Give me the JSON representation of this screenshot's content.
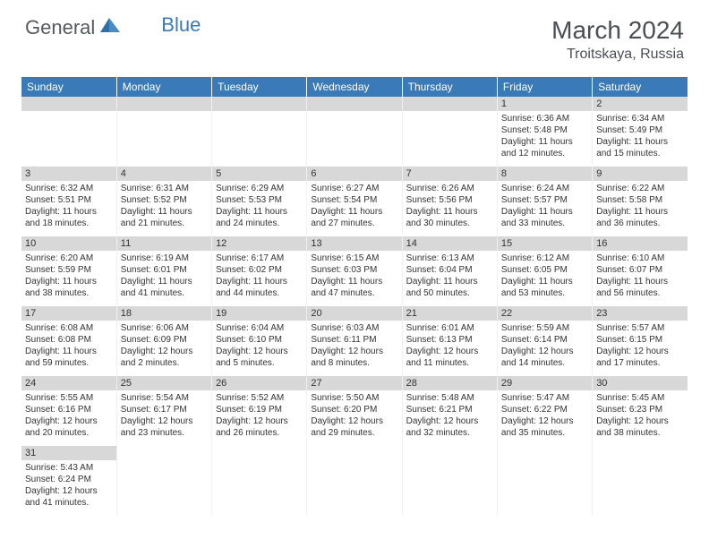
{
  "logo": {
    "general": "General",
    "blue": "Blue"
  },
  "title": "March 2024",
  "location": "Troitskaya, Russia",
  "weekdays": [
    "Sunday",
    "Monday",
    "Tuesday",
    "Wednesday",
    "Thursday",
    "Friday",
    "Saturday"
  ],
  "header_bg": "#3a7ab8",
  "header_fg": "#ffffff",
  "daybar_bg": "#d8d8d8",
  "first_weekday": 5,
  "days": [
    {
      "n": 1,
      "sr": "6:36 AM",
      "ss": "5:48 PM",
      "dl": "11 hours and 12 minutes."
    },
    {
      "n": 2,
      "sr": "6:34 AM",
      "ss": "5:49 PM",
      "dl": "11 hours and 15 minutes."
    },
    {
      "n": 3,
      "sr": "6:32 AM",
      "ss": "5:51 PM",
      "dl": "11 hours and 18 minutes."
    },
    {
      "n": 4,
      "sr": "6:31 AM",
      "ss": "5:52 PM",
      "dl": "11 hours and 21 minutes."
    },
    {
      "n": 5,
      "sr": "6:29 AM",
      "ss": "5:53 PM",
      "dl": "11 hours and 24 minutes."
    },
    {
      "n": 6,
      "sr": "6:27 AM",
      "ss": "5:54 PM",
      "dl": "11 hours and 27 minutes."
    },
    {
      "n": 7,
      "sr": "6:26 AM",
      "ss": "5:56 PM",
      "dl": "11 hours and 30 minutes."
    },
    {
      "n": 8,
      "sr": "6:24 AM",
      "ss": "5:57 PM",
      "dl": "11 hours and 33 minutes."
    },
    {
      "n": 9,
      "sr": "6:22 AM",
      "ss": "5:58 PM",
      "dl": "11 hours and 36 minutes."
    },
    {
      "n": 10,
      "sr": "6:20 AM",
      "ss": "5:59 PM",
      "dl": "11 hours and 38 minutes."
    },
    {
      "n": 11,
      "sr": "6:19 AM",
      "ss": "6:01 PM",
      "dl": "11 hours and 41 minutes."
    },
    {
      "n": 12,
      "sr": "6:17 AM",
      "ss": "6:02 PM",
      "dl": "11 hours and 44 minutes."
    },
    {
      "n": 13,
      "sr": "6:15 AM",
      "ss": "6:03 PM",
      "dl": "11 hours and 47 minutes."
    },
    {
      "n": 14,
      "sr": "6:13 AM",
      "ss": "6:04 PM",
      "dl": "11 hours and 50 minutes."
    },
    {
      "n": 15,
      "sr": "6:12 AM",
      "ss": "6:05 PM",
      "dl": "11 hours and 53 minutes."
    },
    {
      "n": 16,
      "sr": "6:10 AM",
      "ss": "6:07 PM",
      "dl": "11 hours and 56 minutes."
    },
    {
      "n": 17,
      "sr": "6:08 AM",
      "ss": "6:08 PM",
      "dl": "11 hours and 59 minutes."
    },
    {
      "n": 18,
      "sr": "6:06 AM",
      "ss": "6:09 PM",
      "dl": "12 hours and 2 minutes."
    },
    {
      "n": 19,
      "sr": "6:04 AM",
      "ss": "6:10 PM",
      "dl": "12 hours and 5 minutes."
    },
    {
      "n": 20,
      "sr": "6:03 AM",
      "ss": "6:11 PM",
      "dl": "12 hours and 8 minutes."
    },
    {
      "n": 21,
      "sr": "6:01 AM",
      "ss": "6:13 PM",
      "dl": "12 hours and 11 minutes."
    },
    {
      "n": 22,
      "sr": "5:59 AM",
      "ss": "6:14 PM",
      "dl": "12 hours and 14 minutes."
    },
    {
      "n": 23,
      "sr": "5:57 AM",
      "ss": "6:15 PM",
      "dl": "12 hours and 17 minutes."
    },
    {
      "n": 24,
      "sr": "5:55 AM",
      "ss": "6:16 PM",
      "dl": "12 hours and 20 minutes."
    },
    {
      "n": 25,
      "sr": "5:54 AM",
      "ss": "6:17 PM",
      "dl": "12 hours and 23 minutes."
    },
    {
      "n": 26,
      "sr": "5:52 AM",
      "ss": "6:19 PM",
      "dl": "12 hours and 26 minutes."
    },
    {
      "n": 27,
      "sr": "5:50 AM",
      "ss": "6:20 PM",
      "dl": "12 hours and 29 minutes."
    },
    {
      "n": 28,
      "sr": "5:48 AM",
      "ss": "6:21 PM",
      "dl": "12 hours and 32 minutes."
    },
    {
      "n": 29,
      "sr": "5:47 AM",
      "ss": "6:22 PM",
      "dl": "12 hours and 35 minutes."
    },
    {
      "n": 30,
      "sr": "5:45 AM",
      "ss": "6:23 PM",
      "dl": "12 hours and 38 minutes."
    },
    {
      "n": 31,
      "sr": "5:43 AM",
      "ss": "6:24 PM",
      "dl": "12 hours and 41 minutes."
    }
  ],
  "labels": {
    "sunrise": "Sunrise:",
    "sunset": "Sunset:",
    "daylight": "Daylight:"
  }
}
